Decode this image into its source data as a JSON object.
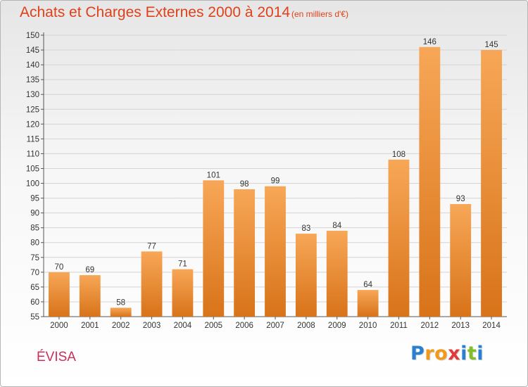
{
  "title": "Achats et Charges Externes 2000 à 2014",
  "subtitle": "(en milliers d'€)",
  "commune": "ÉVISA",
  "logo": {
    "letters": [
      "P",
      "r",
      "o",
      "x",
      "i",
      "t",
      "i"
    ],
    "colors": [
      "#2a7fd0",
      "#f19a1a",
      "#f19a1a",
      "#e23a3a",
      "#2a7fd0",
      "#7fbf2a",
      "#2a7fd0"
    ]
  },
  "colors": {
    "bar_light": "#f7a757",
    "bar_dark": "#d87319",
    "title": "#e0401a",
    "commune": "#c8305a"
  },
  "chart_data": {
    "type": "bar",
    "categories": [
      "2000",
      "2001",
      "2002",
      "2003",
      "2004",
      "2005",
      "2006",
      "2007",
      "2008",
      "2009",
      "2010",
      "2011",
      "2012",
      "2013",
      "2014"
    ],
    "values": [
      70,
      69,
      58,
      77,
      71,
      101,
      98,
      99,
      83,
      84,
      64,
      108,
      146,
      93,
      145
    ],
    "title": "Achats et Charges Externes 2000 à 2014",
    "subtitle": "(en milliers d'€)",
    "xlabel": "",
    "ylabel": "",
    "ylim": [
      55,
      150
    ],
    "yticks": [
      55,
      60,
      65,
      70,
      75,
      80,
      85,
      90,
      95,
      100,
      105,
      110,
      115,
      120,
      125,
      130,
      135,
      140,
      145,
      150
    ],
    "grid": true,
    "data_labels": true
  }
}
